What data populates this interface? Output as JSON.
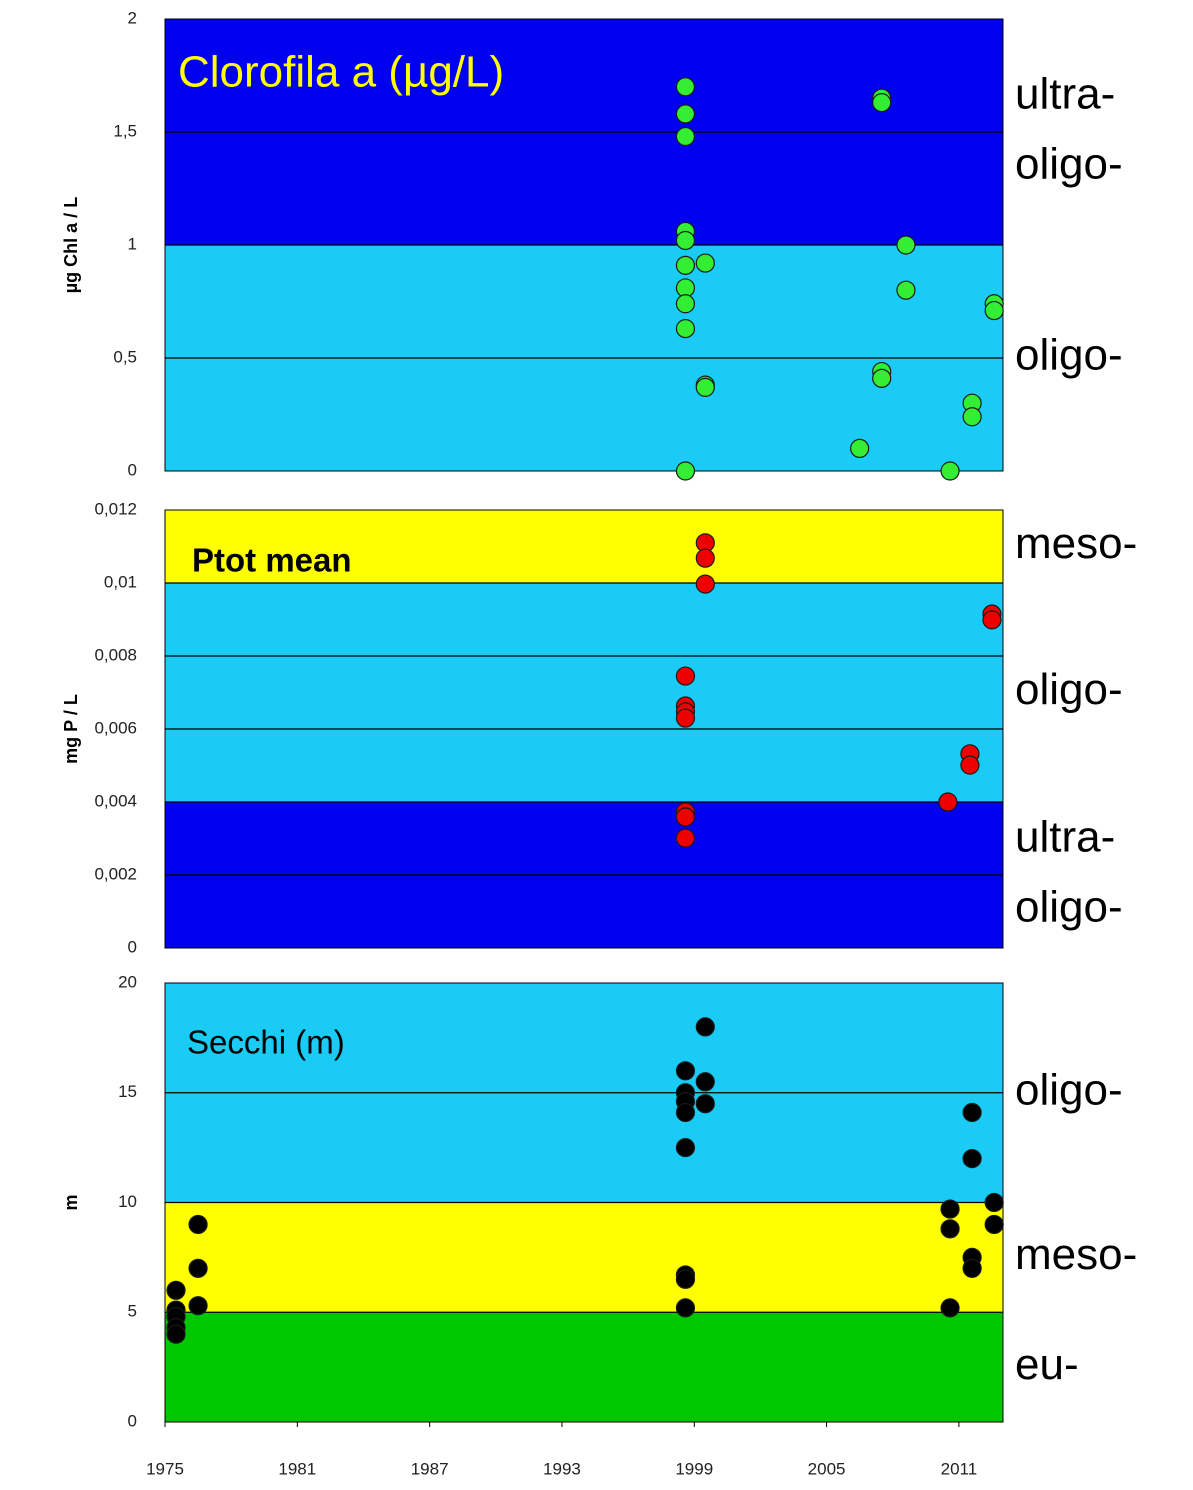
{
  "chart_data": [
    {
      "type": "scatter",
      "title": "Clorofila a (µg/L)",
      "y_label": "µg Chl a / L",
      "xlim": [
        1975,
        2013
      ],
      "ylim": [
        0,
        2
      ],
      "yticks": [
        0,
        {
          "value": 0.5,
          "label": "0,5"
        },
        1,
        {
          "value": 1.5,
          "label": "1,5"
        },
        2
      ],
      "grid": true,
      "color": "#33ee33",
      "bands": [
        {
          "from": 0,
          "to": 1,
          "color": "#19cbf5",
          "label": [
            "oligo-"
          ]
        },
        {
          "from": 1,
          "to": 2,
          "color": "#0000f0",
          "label": [
            "ultra-",
            "oligo-"
          ]
        }
      ],
      "x": [
        1998.6,
        1998.6,
        1998.6,
        1998.6,
        1998.6,
        1998.6,
        1998.6,
        1998.6,
        1998.6,
        1998.6,
        1999.5,
        1999.5,
        1999.5,
        2006.5,
        2007.5,
        2007.5,
        2007.5,
        2007.5,
        2008.6,
        2008.6,
        2010.6,
        2011.6,
        2011.6,
        2012.6,
        2012.6
      ],
      "values": [
        1.7,
        1.58,
        1.48,
        1.06,
        1.02,
        0.91,
        0.81,
        0.74,
        0.63,
        0.0,
        0.92,
        0.38,
        0.37,
        0.1,
        1.65,
        1.63,
        0.44,
        0.41,
        1.0,
        0.8,
        0.0,
        0.3,
        0.24,
        0.74,
        0.71
      ]
    },
    {
      "type": "scatter",
      "title": "Ptot mean",
      "y_label": "mg P / L",
      "xlim": [
        1975,
        2013
      ],
      "ylim": [
        0,
        0.012
      ],
      "yticks": [
        0,
        {
          "value": 0.002,
          "label": "0,002"
        },
        {
          "value": 0.004,
          "label": "0,004"
        },
        {
          "value": 0.006,
          "label": "0,006"
        },
        {
          "value": 0.008,
          "label": "0,008"
        },
        {
          "value": 0.01,
          "label": "0,01"
        },
        {
          "value": 0.012,
          "label": "0,012"
        }
      ],
      "grid": true,
      "color": "#ee0000",
      "bands": [
        {
          "from": 0,
          "to": 0.004,
          "color": "#0000f0",
          "label": [
            "ultra-",
            "oligo-"
          ]
        },
        {
          "from": 0.004,
          "to": 0.01,
          "color": "#19cbf5",
          "label": [
            "oligo-"
          ]
        },
        {
          "from": 0.01,
          "to": 0.012,
          "color": "#ffff00",
          "label": [
            "meso-"
          ]
        }
      ],
      "x": [
        1998.6,
        1998.6,
        1998.6,
        1998.6,
        1998.6,
        1998.6,
        1998.6,
        1999.5,
        1999.5,
        1999.5,
        2010.5,
        2011.5,
        2011.5,
        2012.5,
        2012.5
      ],
      "values": [
        0.00745,
        0.00663,
        0.00647,
        0.0063,
        0.00373,
        0.00359,
        0.00301,
        0.0111,
        0.01068,
        0.00997,
        0.004,
        0.00532,
        0.00501,
        0.00915,
        0.00899
      ]
    },
    {
      "type": "scatter",
      "title": "Secchi (m)",
      "y_label": "m",
      "xlim": [
        1975,
        2013
      ],
      "ylim": [
        0,
        20
      ],
      "xticks": [
        1975,
        1981,
        1987,
        1993,
        1999,
        2005,
        2011
      ],
      "yticks": [
        0,
        5,
        10,
        15,
        20
      ],
      "grid": true,
      "color": "#000000",
      "bands": [
        {
          "from": 0,
          "to": 5,
          "color": "#00c800",
          "label": [
            "eu-"
          ]
        },
        {
          "from": 5,
          "to": 10,
          "color": "#ffff00",
          "label": [
            "meso-"
          ]
        },
        {
          "from": 10,
          "to": 20,
          "color": "#19cbf5",
          "label": [
            "oligo-"
          ]
        }
      ],
      "x": [
        1975.5,
        1975.5,
        1975.5,
        1975.5,
        1975.5,
        1976.5,
        1976.5,
        1976.5,
        1998.6,
        1998.6,
        1998.6,
        1998.6,
        1998.6,
        1998.6,
        1998.6,
        1998.6,
        1999.5,
        1999.5,
        1999.5,
        2010.6,
        2010.6,
        2010.6,
        2011.6,
        2011.6,
        2011.6,
        2011.6,
        2012.6,
        2012.6
      ],
      "values": [
        6.0,
        5.1,
        4.8,
        4.3,
        4.0,
        9.0,
        7.0,
        5.3,
        16.0,
        15.0,
        14.6,
        14.1,
        12.5,
        6.7,
        6.5,
        5.2,
        18.0,
        15.5,
        14.5,
        9.7,
        8.8,
        5.2,
        14.1,
        12.0,
        7.5,
        7.0,
        10.0,
        9.0
      ]
    }
  ]
}
